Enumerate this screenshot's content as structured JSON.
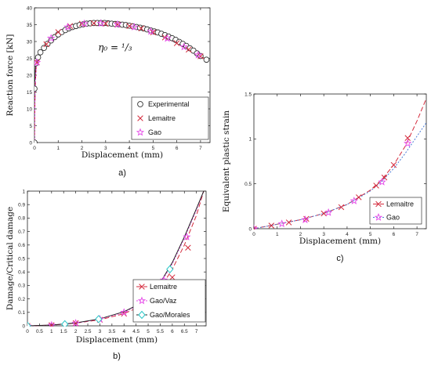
{
  "colors": {
    "experimental": "#333333",
    "lemaitre": "#d42a3c",
    "gao": "#e54ae8",
    "gao_morales": "#2bc6c6",
    "black_curve": "#222222",
    "blue_curve": "#4a7bd6"
  },
  "chart_data": [
    {
      "id": "a",
      "type": "line",
      "panel_label": "a)",
      "xlabel": "Displacement (mm)",
      "ylabel": "Reaction force [kN]",
      "annotation": {
        "text": "η₀ = ¹/₃",
        "x": 3.4,
        "y": 27.3
      },
      "xlim": [
        0,
        7.4
      ],
      "ylim": [
        0,
        40
      ],
      "xticks": [
        0,
        1,
        2,
        3,
        4,
        5,
        6,
        7
      ],
      "yticks": [
        0,
        5,
        10,
        15,
        20,
        25,
        30,
        35,
        40
      ],
      "legend_position": "bottom-right",
      "legend": [
        "Experimental",
        "Lemaitre",
        "Gao"
      ],
      "lines": [
        {
          "name": "Lemaitre",
          "color": "lemaitre",
          "dash": "6,3",
          "x": [
            0,
            0.02,
            0.04,
            0.07,
            0.1,
            0.3,
            0.6,
            1.0,
            1.5,
            2.0,
            2.5,
            3.0,
            3.5,
            4.0,
            4.5,
            5.0,
            5.5,
            6.0,
            6.5,
            7.0,
            7.25
          ],
          "y": [
            0,
            12,
            18,
            22,
            23.8,
            27,
            30,
            32.8,
            34.6,
            35.3,
            35.4,
            35.3,
            35.1,
            34.6,
            33.9,
            32.7,
            31.2,
            29.5,
            27.6,
            25.6,
            24.7
          ]
        },
        {
          "name": "Gao",
          "color": "gao",
          "dash": "2,2",
          "x": [
            0,
            0.02,
            0.04,
            0.07,
            0.1,
            0.3,
            0.6,
            1.0,
            1.5,
            2.0,
            2.5,
            3.0,
            3.5,
            4.0,
            4.5,
            5.0,
            5.5,
            6.0,
            6.5,
            7.0,
            7.25
          ],
          "y": [
            0,
            12,
            18,
            22,
            23.8,
            27,
            30,
            32.8,
            34.6,
            35.3,
            35.4,
            35.3,
            35.1,
            34.6,
            33.9,
            32.7,
            31.2,
            29.5,
            27.6,
            25.6,
            24.7
          ]
        }
      ],
      "markers": [
        {
          "name": "Experimental",
          "symbol": "circle",
          "color": "experimental",
          "points": [
            [
              0,
              0
            ],
            [
              0,
              16
            ],
            [
              0.05,
              23.5
            ],
            [
              0.15,
              25.3
            ],
            [
              0.25,
              26.8
            ],
            [
              0.4,
              28.1
            ],
            [
              0.55,
              29.3
            ],
            [
              0.7,
              30.3
            ],
            [
              0.85,
              31.3
            ],
            [
              1.0,
              32.1
            ],
            [
              1.15,
              32.8
            ],
            [
              1.3,
              33.4
            ],
            [
              1.45,
              33.9
            ],
            [
              1.6,
              34.3
            ],
            [
              1.75,
              34.6
            ],
            [
              1.9,
              34.9
            ],
            [
              2.05,
              35.1
            ],
            [
              2.2,
              35.3
            ],
            [
              2.35,
              35.4
            ],
            [
              2.5,
              35.5
            ],
            [
              2.65,
              35.5
            ],
            [
              2.8,
              35.5
            ],
            [
              2.95,
              35.5
            ],
            [
              3.1,
              35.4
            ],
            [
              3.25,
              35.3
            ],
            [
              3.4,
              35.2
            ],
            [
              3.55,
              35.1
            ],
            [
              3.7,
              35.0
            ],
            [
              3.85,
              34.9
            ],
            [
              4.0,
              34.7
            ],
            [
              4.15,
              34.5
            ],
            [
              4.3,
              34.3
            ],
            [
              4.45,
              34.1
            ],
            [
              4.6,
              33.9
            ],
            [
              4.75,
              33.6
            ],
            [
              4.9,
              33.3
            ],
            [
              5.05,
              33.0
            ],
            [
              5.2,
              32.7
            ],
            [
              5.35,
              32.3
            ],
            [
              5.5,
              31.9
            ],
            [
              5.65,
              31.5
            ],
            [
              5.8,
              31.0
            ],
            [
              5.95,
              30.5
            ],
            [
              6.1,
              29.9
            ],
            [
              6.25,
              29.3
            ],
            [
              6.4,
              28.7
            ],
            [
              6.55,
              28.0
            ],
            [
              6.7,
              27.3
            ],
            [
              6.85,
              26.5
            ],
            [
              7.0,
              25.7
            ],
            [
              7.25,
              24.6
            ]
          ]
        },
        {
          "name": "Lemaitre",
          "symbol": "x",
          "color": "lemaitre",
          "points": [
            [
              0.1,
              23.8
            ],
            [
              0.5,
              29.2
            ],
            [
              1.0,
              32.8
            ],
            [
              1.5,
              34.6
            ],
            [
              2.0,
              35.3
            ],
            [
              2.5,
              35.4
            ],
            [
              3.0,
              35.3
            ],
            [
              3.5,
              35.1
            ],
            [
              4.0,
              34.6
            ],
            [
              4.5,
              33.9
            ],
            [
              5.0,
              32.7
            ],
            [
              5.5,
              31.2
            ],
            [
              6.0,
              29.5
            ],
            [
              6.5,
              27.6
            ],
            [
              7.0,
              25.6
            ]
          ]
        },
        {
          "name": "Gao",
          "symbol": "star",
          "color": "gao",
          "points": [
            [
              0.1,
              23.8
            ],
            [
              0.7,
              31.0
            ],
            [
              1.4,
              34.3
            ],
            [
              2.1,
              35.3
            ],
            [
              2.8,
              35.4
            ],
            [
              3.5,
              35.1
            ],
            [
              4.2,
              34.3
            ],
            [
              4.9,
              33.0
            ],
            [
              5.6,
              30.9
            ],
            [
              6.3,
              28.4
            ],
            [
              6.9,
              26.0
            ]
          ]
        }
      ]
    },
    {
      "id": "b",
      "type": "line",
      "panel_label": "b)",
      "xlabel": "Displacement (mm)",
      "ylabel": "Damage/Critical damage",
      "xlim": [
        0,
        7.4
      ],
      "ylim": [
        0,
        1
      ],
      "xticks": [
        0,
        0.5,
        1,
        1.5,
        2,
        2.5,
        3,
        3.5,
        4,
        4.5,
        5,
        5.5,
        6,
        6.5,
        7
      ],
      "yticks": [
        0,
        0.1,
        0.2,
        0.3,
        0.4,
        0.5,
        0.6,
        0.7,
        0.8,
        0.9,
        1
      ],
      "legend_position": "bottom-right",
      "legend": [
        "Lemaitre",
        "Gao/Vaz",
        "Gao/Morales"
      ],
      "lines": [
        {
          "name": "Lemaitre",
          "color": "lemaitre",
          "dash": "6,3",
          "x": [
            0,
            1,
            2,
            3,
            4,
            4.5,
            5,
            5.5,
            6,
            6.5,
            7,
            7.3
          ],
          "y": [
            0,
            0.005,
            0.02,
            0.045,
            0.09,
            0.13,
            0.19,
            0.28,
            0.42,
            0.6,
            0.82,
            1
          ]
        },
        {
          "name": "Gao/Vaz",
          "color": "gao",
          "dash": "2,2",
          "x": [
            0,
            1,
            2,
            3,
            4,
            4.5,
            5,
            5.5,
            6,
            6.5,
            7,
            7.3
          ],
          "y": [
            0,
            0.005,
            0.02,
            0.05,
            0.1,
            0.145,
            0.21,
            0.31,
            0.46,
            0.65,
            0.86,
            1
          ]
        },
        {
          "name": "Gao/Morales",
          "color": "black_curve",
          "dash": "",
          "x": [
            0,
            1,
            2,
            3,
            4,
            4.5,
            5,
            5.5,
            6,
            6.5,
            7,
            7.3
          ],
          "y": [
            0,
            0.006,
            0.022,
            0.052,
            0.105,
            0.15,
            0.22,
            0.32,
            0.47,
            0.66,
            0.87,
            1
          ]
        }
      ],
      "markers": [
        {
          "name": "Lemaitre",
          "symbol": "x",
          "color": "lemaitre",
          "points": [
            [
              0,
              0
            ],
            [
              1,
              0.005
            ],
            [
              2,
              0.02
            ],
            [
              3,
              0.045
            ],
            [
              4,
              0.09
            ],
            [
              5,
              0.19
            ],
            [
              6,
              0.36
            ],
            [
              6.65,
              0.58
            ]
          ]
        },
        {
          "name": "Gao/Vaz",
          "symbol": "star",
          "color": "gao",
          "points": [
            [
              0,
              0
            ],
            [
              1,
              0.005
            ],
            [
              2,
              0.02
            ],
            [
              3,
              0.05
            ],
            [
              4,
              0.1
            ],
            [
              5.65,
              0.34
            ],
            [
              6.6,
              0.66
            ]
          ]
        },
        {
          "name": "Gao/Morales",
          "symbol": "diamond",
          "color": "gao_morales",
          "points": [
            [
              0,
              0
            ],
            [
              1.55,
              0.012
            ],
            [
              2.95,
              0.05
            ],
            [
              5.9,
              0.42
            ]
          ]
        }
      ]
    },
    {
      "id": "c",
      "type": "line",
      "panel_label": "c)",
      "xlabel": "Displacement (mm)",
      "ylabel": "Equivalent plastic strain",
      "xlim": [
        0,
        7.4
      ],
      "ylim": [
        0,
        1.5
      ],
      "xticks": [
        0,
        1,
        2,
        3,
        4,
        5,
        6,
        7
      ],
      "yticks": [
        0,
        0.5,
        1,
        1.5
      ],
      "legend_position": "bottom-right",
      "legend": [
        "Lemaitre",
        "Gao"
      ],
      "lines": [
        {
          "name": "Lemaitre",
          "color": "lemaitre",
          "dash": "6,3",
          "x": [
            0,
            1,
            2,
            3,
            4,
            5,
            5.5,
            6,
            6.5,
            7,
            7.4
          ],
          "y": [
            0,
            0.05,
            0.1,
            0.17,
            0.27,
            0.43,
            0.55,
            0.71,
            0.92,
            1.2,
            1.45
          ]
        },
        {
          "name": "Gao",
          "color": "blue_curve",
          "dash": "2,2",
          "x": [
            0,
            1,
            2,
            3,
            4,
            5,
            5.5,
            6,
            6.5,
            7,
            7.4
          ],
          "y": [
            0,
            0.05,
            0.1,
            0.17,
            0.27,
            0.42,
            0.53,
            0.67,
            0.84,
            1.03,
            1.18
          ]
        }
      ],
      "markers": [
        {
          "name": "Lemaitre",
          "symbol": "x",
          "color": "lemaitre",
          "points": [
            [
              0,
              0
            ],
            [
              0.75,
              0.035
            ],
            [
              1.5,
              0.07
            ],
            [
              2.25,
              0.11
            ],
            [
              3,
              0.17
            ],
            [
              3.75,
              0.24
            ],
            [
              4.5,
              0.35
            ],
            [
              5.25,
              0.48
            ],
            [
              5.6,
              0.57
            ],
            [
              6.0,
              0.71
            ],
            [
              6.6,
              1.01
            ]
          ]
        },
        {
          "name": "Gao",
          "symbol": "star",
          "color": "gao",
          "points": [
            [
              0,
              0
            ],
            [
              1.2,
              0.055
            ],
            [
              2.2,
              0.1
            ],
            [
              3.2,
              0.18
            ],
            [
              4.3,
              0.31
            ],
            [
              5.5,
              0.52
            ],
            [
              6.6,
              0.95
            ]
          ]
        }
      ]
    }
  ]
}
